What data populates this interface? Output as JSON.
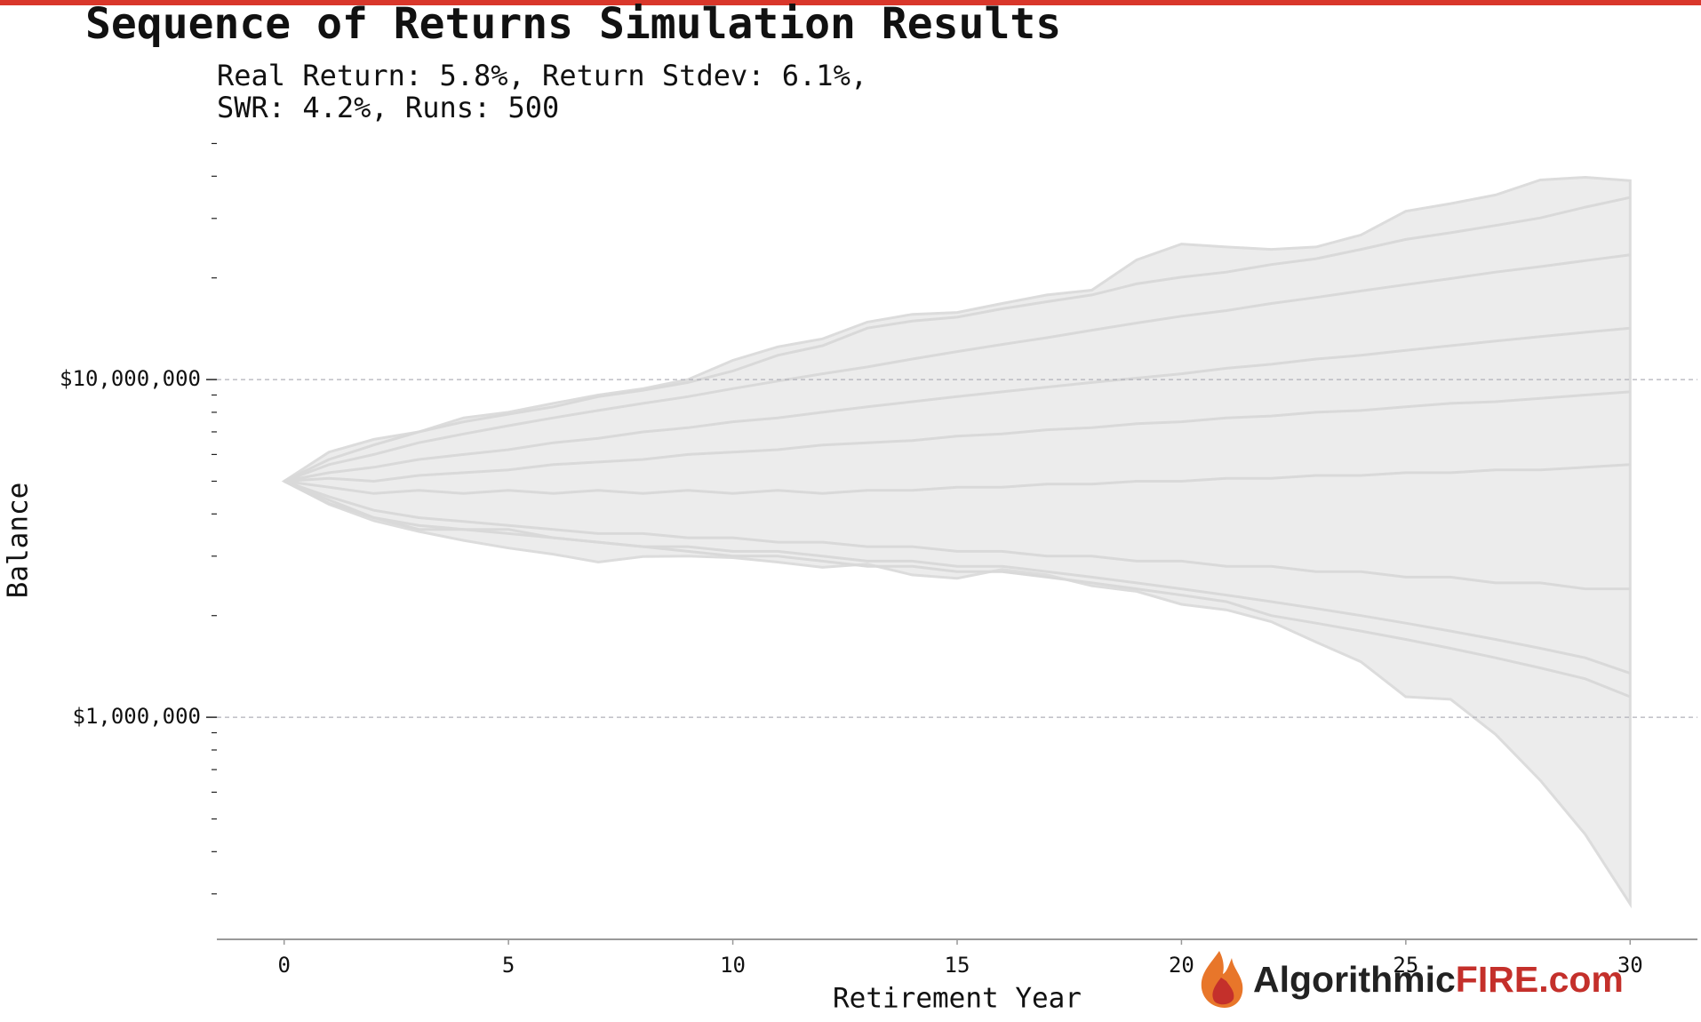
{
  "chart_data": {
    "type": "line",
    "title": "Sequence of Returns Simulation Results",
    "subtitle": [
      "Real Return: 5.8%, Return Stdev: 6.1%,",
      "SWR: 4.2%, Runs: 500"
    ],
    "x_label": "Retirement Year",
    "y_label": "Balance",
    "log_y": true,
    "x": [
      0,
      1,
      2,
      3,
      4,
      5,
      6,
      7,
      8,
      9,
      10,
      11,
      12,
      13,
      14,
      15,
      16,
      17,
      18,
      19,
      20,
      21,
      22,
      23,
      24,
      25,
      26,
      27,
      28,
      29,
      30
    ],
    "xlim": [
      -1.5,
      31.5
    ],
    "xticks": [
      0,
      5,
      10,
      15,
      20,
      25,
      30
    ],
    "ylim": [
      220000,
      52000000
    ],
    "yticks": [
      {
        "value": 1000000,
        "label": "$1,000,000"
      },
      {
        "value": 10000000,
        "label": "$10,000,000"
      }
    ],
    "yticks_minor": [
      300000,
      400000,
      500000,
      600000,
      700000,
      800000,
      900000,
      2000000,
      3000000,
      4000000,
      5000000,
      6000000,
      7000000,
      8000000,
      9000000,
      20000000,
      30000000,
      40000000,
      50000000
    ],
    "grid": true,
    "envelope": {
      "color": "#ececec",
      "upper": [
        5000000.0,
        6100000.0,
        6650000.0,
        7000000.0,
        7700000.0,
        8000000.0,
        8500000.0,
        9000000.0,
        9400000.0,
        10000000.0,
        11400000.0,
        12500000.0,
        13200000.0,
        14800000.0,
        15600000.0,
        15800000.0,
        16800000.0,
        17800000.0,
        18400000.0,
        22600000.0,
        25200000.0,
        24700000.0,
        24300000.0,
        24700000.0,
        26800000.0,
        31500000.0,
        33200000.0,
        35200000.0,
        39000000.0,
        39700000.0,
        38800000.0
      ],
      "lower": [
        5000000.0,
        4270000.0,
        3820000.0,
        3550000.0,
        3340000.0,
        3170000.0,
        3040000.0,
        2880000.0,
        2990000.0,
        3000000.0,
        2970000.0,
        2880000.0,
        2780000.0,
        2840000.0,
        2640000.0,
        2580000.0,
        2740000.0,
        2640000.0,
        2450000.0,
        2360000.0,
        2160000.0,
        2080000.0,
        1920000.0,
        1670000.0,
        1460000.0,
        1150000.0,
        1130000.0,
        890000.0,
        650000.0,
        450000.0,
        280000.0
      ]
    },
    "series": [
      {
        "color": "#d9d9d9",
        "values": [
          5000000.0,
          5800000.0,
          6400000.0,
          7000000.0,
          7500000.0,
          7900000.0,
          8300000.0,
          8900000.0,
          9300000.0,
          9800000.0,
          10600000.0,
          11800000.0,
          12600000.0,
          14200000.0,
          14900000.0,
          15300000.0,
          16200000.0,
          17000000.0,
          17800000.0,
          19200000.0,
          20100000.0,
          20800000.0,
          21900000.0,
          22800000.0,
          24300000.0,
          26000000.0,
          27200000.0,
          28600000.0,
          30100000.0,
          32400000.0,
          34600000.0
        ]
      },
      {
        "color": "#d9d9d9",
        "values": [
          5000000.0,
          5600000.0,
          6000000.0,
          6500000.0,
          6900000.0,
          7300000.0,
          7700000.0,
          8100000.0,
          8500000.0,
          8900000.0,
          9400000.0,
          9900000.0,
          10400000.0,
          10900000.0,
          11500000.0,
          12100000.0,
          12700000.0,
          13300000.0,
          14000000.0,
          14700000.0,
          15400000.0,
          16000000.0,
          16800000.0,
          17500000.0,
          18300000.0,
          19100000.0,
          19900000.0,
          20800000.0,
          21600000.0,
          22500000.0,
          23400000.0
        ]
      },
      {
        "color": "#d9d9d9",
        "values": [
          5000000.0,
          5300000.0,
          5500000.0,
          5800000.0,
          6000000.0,
          6200000.0,
          6500000.0,
          6700000.0,
          7000000.0,
          7200000.0,
          7500000.0,
          7700000.0,
          8000000.0,
          8300000.0,
          8600000.0,
          8900000.0,
          9200000.0,
          9500000.0,
          9800000.0,
          10100000.0,
          10400000.0,
          10800000.0,
          11100000.0,
          11500000.0,
          11800000.0,
          12200000.0,
          12600000.0,
          13000000.0,
          13400000.0,
          13800000.0,
          14200000.0
        ]
      },
      {
        "color": "#d9d9d9",
        "values": [
          5000000.0,
          5100000.0,
          5000000.0,
          5200000.0,
          5300000.0,
          5400000.0,
          5600000.0,
          5700000.0,
          5800000.0,
          6000000.0,
          6100000.0,
          6200000.0,
          6400000.0,
          6500000.0,
          6600000.0,
          6800000.0,
          6900000.0,
          7100000.0,
          7200000.0,
          7400000.0,
          7500000.0,
          7700000.0,
          7800000.0,
          8000000.0,
          8100000.0,
          8300000.0,
          8500000.0,
          8600000.0,
          8800000.0,
          9000000.0,
          9200000.0
        ]
      },
      {
        "color": "#d9d9d9",
        "values": [
          5000000.0,
          4800000.0,
          4600000.0,
          4700000.0,
          4600000.0,
          4700000.0,
          4600000.0,
          4700000.0,
          4600000.0,
          4700000.0,
          4600000.0,
          4700000.0,
          4600000.0,
          4700000.0,
          4700000.0,
          4800000.0,
          4800000.0,
          4900000.0,
          4900000.0,
          5000000.0,
          5000000.0,
          5100000.0,
          5100000.0,
          5200000.0,
          5200000.0,
          5300000.0,
          5300000.0,
          5400000.0,
          5400000.0,
          5500000.0,
          5600000.0
        ]
      },
      {
        "color": "#d9d9d9",
        "values": [
          5000000.0,
          4500000.0,
          4100000.0,
          3900000.0,
          3800000.0,
          3700000.0,
          3600000.0,
          3500000.0,
          3500000.0,
          3400000.0,
          3400000.0,
          3300000.0,
          3300000.0,
          3200000.0,
          3200000.0,
          3100000.0,
          3100000.0,
          3000000.0,
          3000000.0,
          2900000.0,
          2900000.0,
          2800000.0,
          2800000.0,
          2700000.0,
          2700000.0,
          2600000.0,
          2600000.0,
          2500000.0,
          2500000.0,
          2400000.0,
          2400000.0
        ]
      },
      {
        "color": "#d9d9d9",
        "values": [
          5000000.0,
          4400000.0,
          3900000.0,
          3700000.0,
          3600000.0,
          3500000.0,
          3400000.0,
          3300000.0,
          3200000.0,
          3200000.0,
          3100000.0,
          3100000.0,
          3000000.0,
          2900000.0,
          2900000.0,
          2800000.0,
          2800000.0,
          2700000.0,
          2600000.0,
          2500000.0,
          2400000.0,
          2300000.0,
          2200000.0,
          2100000.0,
          2000000.0,
          1900000.0,
          1800000.0,
          1700000.0,
          1600000.0,
          1500000.0,
          1350000.0
        ]
      },
      {
        "color": "#d9d9d9",
        "values": [
          5000000.0,
          4300000.0,
          3900000.0,
          3600000.0,
          3600000.0,
          3600000.0,
          3400000.0,
          3300000.0,
          3200000.0,
          3100000.0,
          3000000.0,
          3000000.0,
          2900000.0,
          2800000.0,
          2800000.0,
          2700000.0,
          2700000.0,
          2600000.0,
          2500000.0,
          2400000.0,
          2300000.0,
          2200000.0,
          2000000.0,
          1900000.0,
          1800000.0,
          1700000.0,
          1600000.0,
          1500000.0,
          1400000.0,
          1300000.0,
          1150000.0
        ]
      }
    ],
    "logo": [
      "Algorithmic",
      "FIRE.com"
    ]
  }
}
